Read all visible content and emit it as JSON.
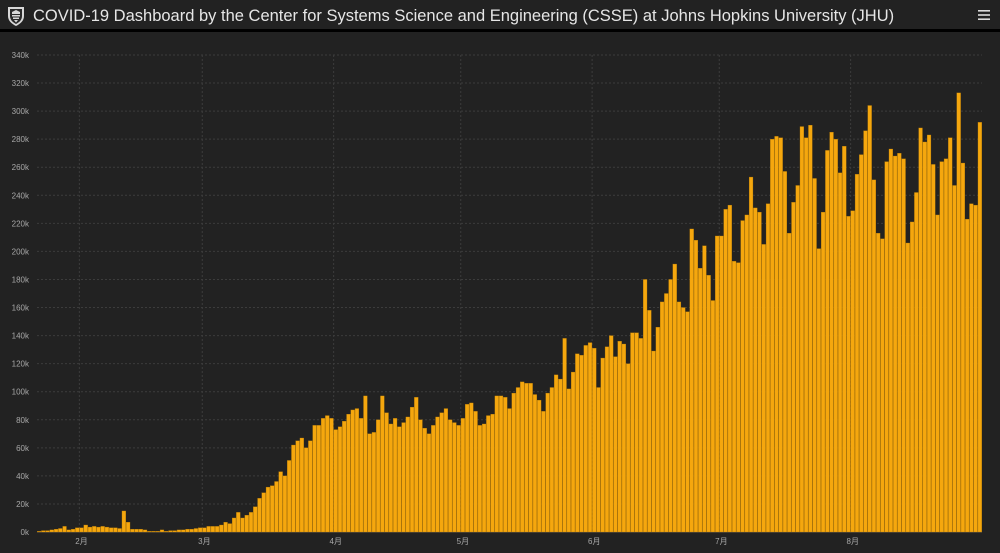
{
  "header": {
    "title": "COVID-19 Dashboard by the Center for Systems Science and Engineering (CSSE) at Johns Hopkins University (JHU)",
    "menu_icon": "hamburger-menu-icon",
    "logo_icon": "jhu-shield-icon"
  },
  "colors": {
    "background": "#222222",
    "bar": "#f5a70e",
    "bar_edge": "#b57a05",
    "grid": "#3c3c3c",
    "axis_text": "#a8a8a8"
  },
  "chart_data": {
    "type": "bar",
    "title": "",
    "xlabel": "",
    "ylabel": "",
    "ylim": [
      0,
      340000
    ],
    "yticks": [
      "0k",
      "20k",
      "40k",
      "60k",
      "80k",
      "100k",
      "120k",
      "140k",
      "160k",
      "180k",
      "200k",
      "220k",
      "240k",
      "260k",
      "280k",
      "300k",
      "320k",
      "340k"
    ],
    "x_start": "2020-01-22",
    "month_labels": [
      {
        "date": "2020-02-01",
        "label": "2月"
      },
      {
        "date": "2020-03-01",
        "label": "3月"
      },
      {
        "date": "2020-04-01",
        "label": "4月"
      },
      {
        "date": "2020-05-01",
        "label": "5月"
      },
      {
        "date": "2020-06-01",
        "label": "6月"
      },
      {
        "date": "2020-07-01",
        "label": "7月"
      },
      {
        "date": "2020-08-01",
        "label": "8月"
      }
    ],
    "grid": true,
    "values": [
      500,
      1000,
      1000,
      1500,
      2000,
      2500,
      4000,
      1500,
      2000,
      3000,
      3000,
      5000,
      3500,
      4000,
      3500,
      4000,
      3500,
      3000,
      3000,
      2500,
      15000,
      7000,
      2000,
      2000,
      2000,
      1500,
      500,
      500,
      500,
      1500,
      500,
      1000,
      1000,
      1500,
      1500,
      2000,
      2000,
      2500,
      3000,
      3000,
      4000,
      4000,
      4000,
      5000,
      7000,
      6000,
      10000,
      14000,
      10000,
      12000,
      14000,
      18000,
      24000,
      28000,
      32000,
      33000,
      36000,
      43000,
      40000,
      51000,
      62000,
      65000,
      67000,
      60000,
      65000,
      76000,
      76000,
      81000,
      83000,
      81000,
      73000,
      75000,
      79000,
      84000,
      87000,
      88000,
      81000,
      97000,
      70000,
      71000,
      80000,
      97000,
      85000,
      77000,
      81000,
      75000,
      78000,
      82000,
      89000,
      96000,
      80000,
      74000,
      70000,
      76000,
      82000,
      85000,
      88000,
      80000,
      78000,
      76000,
      81000,
      91000,
      92000,
      86000,
      76000,
      77000,
      83000,
      84000,
      97000,
      97000,
      96000,
      88000,
      99000,
      103000,
      107000,
      106000,
      106000,
      98000,
      94000,
      86000,
      99000,
      103000,
      112000,
      109000,
      138000,
      102000,
      114000,
      127000,
      126000,
      133000,
      135000,
      131000,
      103000,
      124000,
      132000,
      140000,
      125000,
      136000,
      134000,
      120000,
      142000,
      142000,
      138000,
      180000,
      158000,
      129000,
      146000,
      164000,
      170000,
      180000,
      191000,
      164000,
      160000,
      157000,
      216000,
      208000,
      188000,
      204000,
      183000,
      165000,
      211000,
      211000,
      230000,
      233000,
      193000,
      192000,
      222000,
      226000,
      253000,
      231000,
      228000,
      205000,
      234000,
      280000,
      282000,
      281000,
      257000,
      213000,
      235000,
      247000,
      289000,
      281000,
      290000,
      252000,
      202000,
      228000,
      272000,
      285000,
      280000,
      256000,
      275000,
      225000,
      229000,
      255000,
      269000,
      286000,
      304000,
      251000,
      213000,
      209000,
      264000,
      273000,
      268000,
      270000,
      266000,
      206000,
      221000,
      242000,
      288000,
      278000,
      283000,
      262000,
      226000,
      264000,
      266000,
      281000,
      247000,
      313000,
      263000,
      223000,
      234000,
      233000,
      292000
    ]
  }
}
